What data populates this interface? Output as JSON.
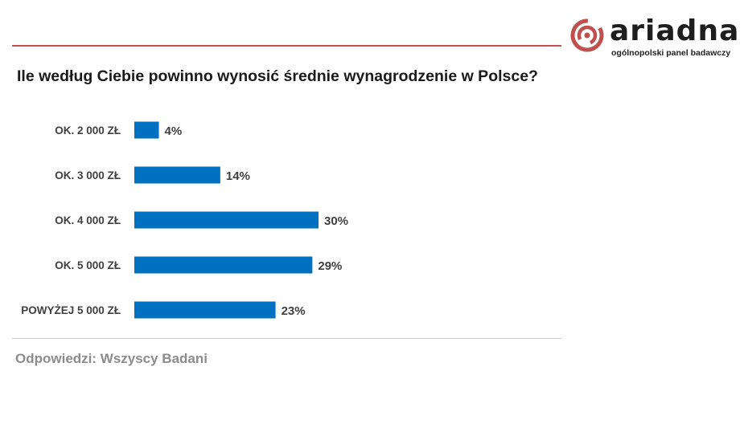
{
  "header": {
    "brand": "ariadna",
    "tagline": "ogólnopolski panel badawczy"
  },
  "colors": {
    "accent": "#c0504d",
    "bar": "#0070c0"
  },
  "chart_data": {
    "type": "bar",
    "orientation": "horizontal",
    "title": "Ile według Ciebie powinno wynosić średnie wynagrodzenie w Polsce?",
    "categories": [
      "OK. 2 000 ZŁ",
      "OK. 3 000 ZŁ",
      "OK. 4 000 ZŁ",
      "OK. 5 000 ZŁ",
      "POWYŻEJ 5 000 ZŁ"
    ],
    "values": [
      4,
      14,
      30,
      29,
      23
    ],
    "value_labels": [
      "4%",
      "14%",
      "30%",
      "29%",
      "23%"
    ],
    "unit": "%",
    "xlim": [
      0,
      30
    ],
    "grid": false,
    "legend": "none"
  },
  "footnote": "Odpowiedzi: Wszyscy Badani"
}
